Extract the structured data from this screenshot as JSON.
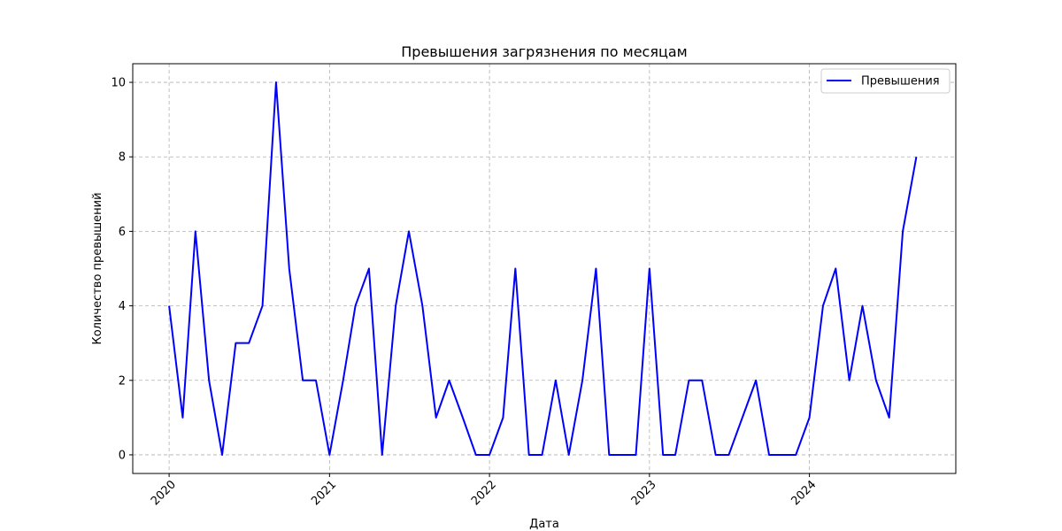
{
  "chart_data": {
    "type": "line",
    "title": "Превышения загрязнения по месяцам",
    "xlabel": "Дата",
    "ylabel": "Количество превышений",
    "x_ticks": [
      "2020",
      "2021",
      "2022",
      "2023",
      "2024"
    ],
    "y_ticks": [
      0,
      2,
      4,
      6,
      8,
      10
    ],
    "xlim": [
      "2019-10-10",
      "2024-11-30"
    ],
    "ylim": [
      -0.5,
      10.5
    ],
    "grid": true,
    "legend_placement": "top-right",
    "series": [
      {
        "name": "Превышения",
        "color": "#0000ff",
        "x": [
          "2020-01",
          "2020-02",
          "2020-03",
          "2020-04",
          "2020-05",
          "2020-06",
          "2020-07",
          "2020-08",
          "2020-09",
          "2020-10",
          "2020-11",
          "2020-12",
          "2021-01",
          "2021-02",
          "2021-03",
          "2021-04",
          "2021-05",
          "2021-06",
          "2021-07",
          "2021-08",
          "2021-09",
          "2021-10",
          "2021-11",
          "2021-12",
          "2022-01",
          "2022-02",
          "2022-03",
          "2022-04",
          "2022-05",
          "2022-06",
          "2022-07",
          "2022-08",
          "2022-09",
          "2022-10",
          "2022-11",
          "2022-12",
          "2023-01",
          "2023-02",
          "2023-03",
          "2023-04",
          "2023-05",
          "2023-06",
          "2023-07",
          "2023-08",
          "2023-09",
          "2023-10",
          "2023-11",
          "2023-12",
          "2024-01",
          "2024-02",
          "2024-03",
          "2024-04",
          "2024-05",
          "2024-06",
          "2024-07",
          "2024-08",
          "2024-09"
        ],
        "values": [
          4,
          1,
          6,
          2,
          0,
          3,
          3,
          4,
          10,
          5,
          2,
          2,
          0,
          2,
          4,
          5,
          0,
          4,
          6,
          4,
          1,
          2,
          1,
          0,
          0,
          1,
          5,
          0,
          0,
          2,
          0,
          2,
          5,
          0,
          0,
          0,
          5,
          0,
          0,
          2,
          2,
          0,
          0,
          1,
          2,
          0,
          0,
          0,
          1,
          4,
          5,
          2,
          4,
          2,
          1,
          6,
          8
        ]
      }
    ]
  }
}
